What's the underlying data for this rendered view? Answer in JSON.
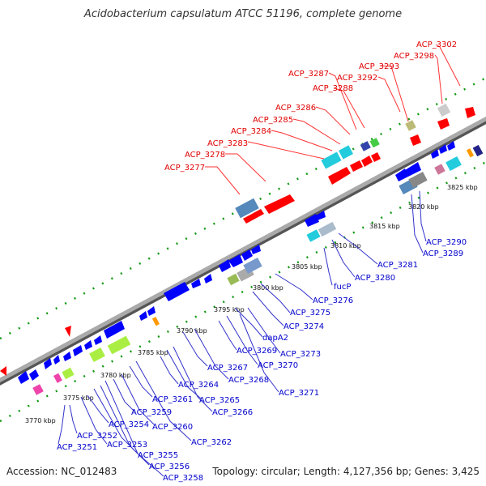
{
  "title": "Acidobacterium capsulatum ATCC 51196, complete genome",
  "footer": {
    "accession": "Accession: NC_012483",
    "summary": "Topology: circular; Length: 4,127,356 bp; Genes: 3,425"
  },
  "colors": {
    "backbone": "#888888",
    "forward": "#ff0000",
    "reverse": "#0000ff",
    "label_forward": "#e00000",
    "label_reverse": "#0000cc",
    "tick": "#007700"
  },
  "scale_ticks": [
    "3770 kbp",
    "3775 kbp",
    "3780 kbp",
    "3785 kbp",
    "3790 kbp",
    "3795 kbp",
    "3800 kbp",
    "3805 kbp",
    "3810 kbp",
    "3815 kbp",
    "3820 kbp",
    "3825 kbp"
  ],
  "top_labels": [
    "ACP_3277",
    "ACP_3278",
    "ACP_3283",
    "ACP_3284",
    "ACP_3285",
    "ACP_3286",
    "ACP_3287",
    "ACP_3288",
    "ACP_3292",
    "ACP_3293",
    "ACP_3298",
    "ACP_3302"
  ],
  "bottom_labels": [
    "ACP_3251",
    "ACP_3252",
    "ACP_3253",
    "ACP_3254",
    "ACP_3255",
    "ACP_3256",
    "ACP_3258",
    "ACP_3259",
    "ACP_3260",
    "ACP_3261",
    "ACP_3262",
    "ACP_3264",
    "ACP_3265",
    "ACP_3266",
    "ACP_3267",
    "ACP_3268",
    "ACP_3269",
    "dapA2",
    "ACP_3270",
    "ACP_3271",
    "ACP_3273",
    "ACP_3274",
    "ACP_3275",
    "ACP_3276",
    "fucP",
    "ACP_3280",
    "ACP_3281",
    "ACP_3289",
    "ACP_3290"
  ]
}
